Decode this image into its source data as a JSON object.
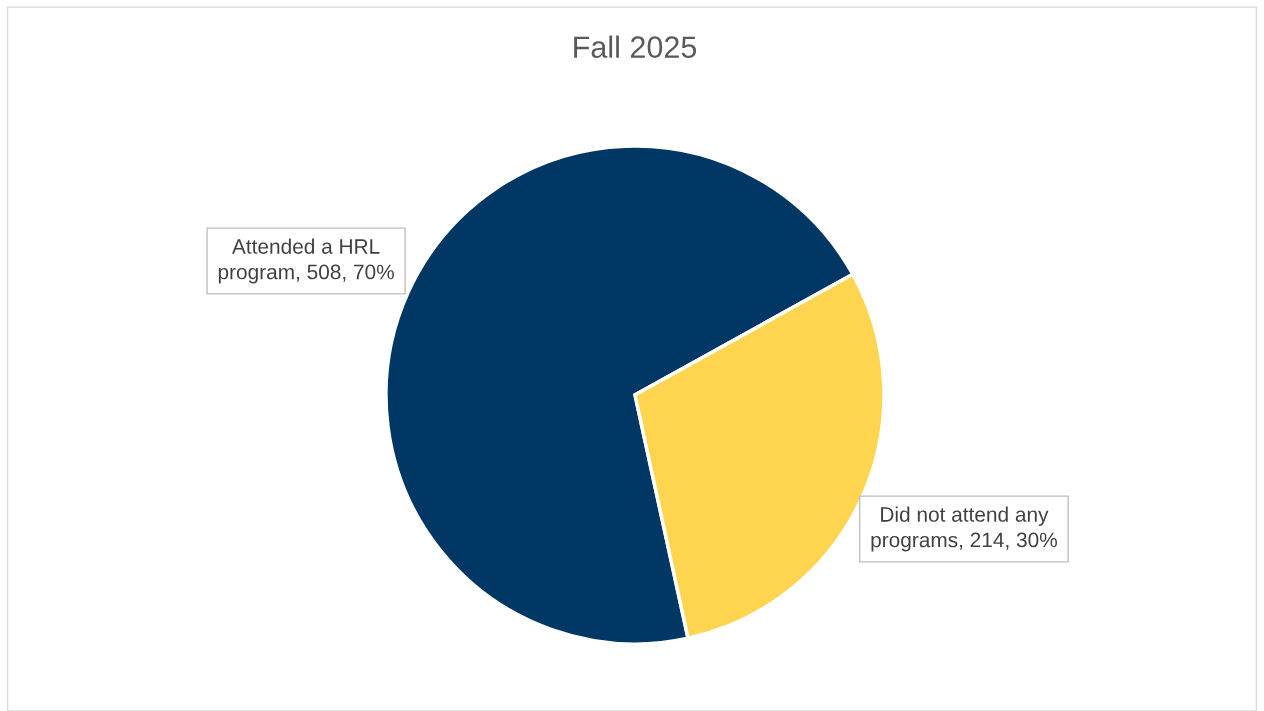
{
  "chart_data": {
    "type": "pie",
    "title": "Fall 2025",
    "categories": [
      "Attended a HRL program",
      "Did not attend any programs"
    ],
    "values": [
      508,
      214
    ],
    "colors": [
      "#003764",
      "#ffd54f"
    ],
    "value_labels": [
      "508, 70%",
      "214, 30%"
    ],
    "legend": false
  }
}
